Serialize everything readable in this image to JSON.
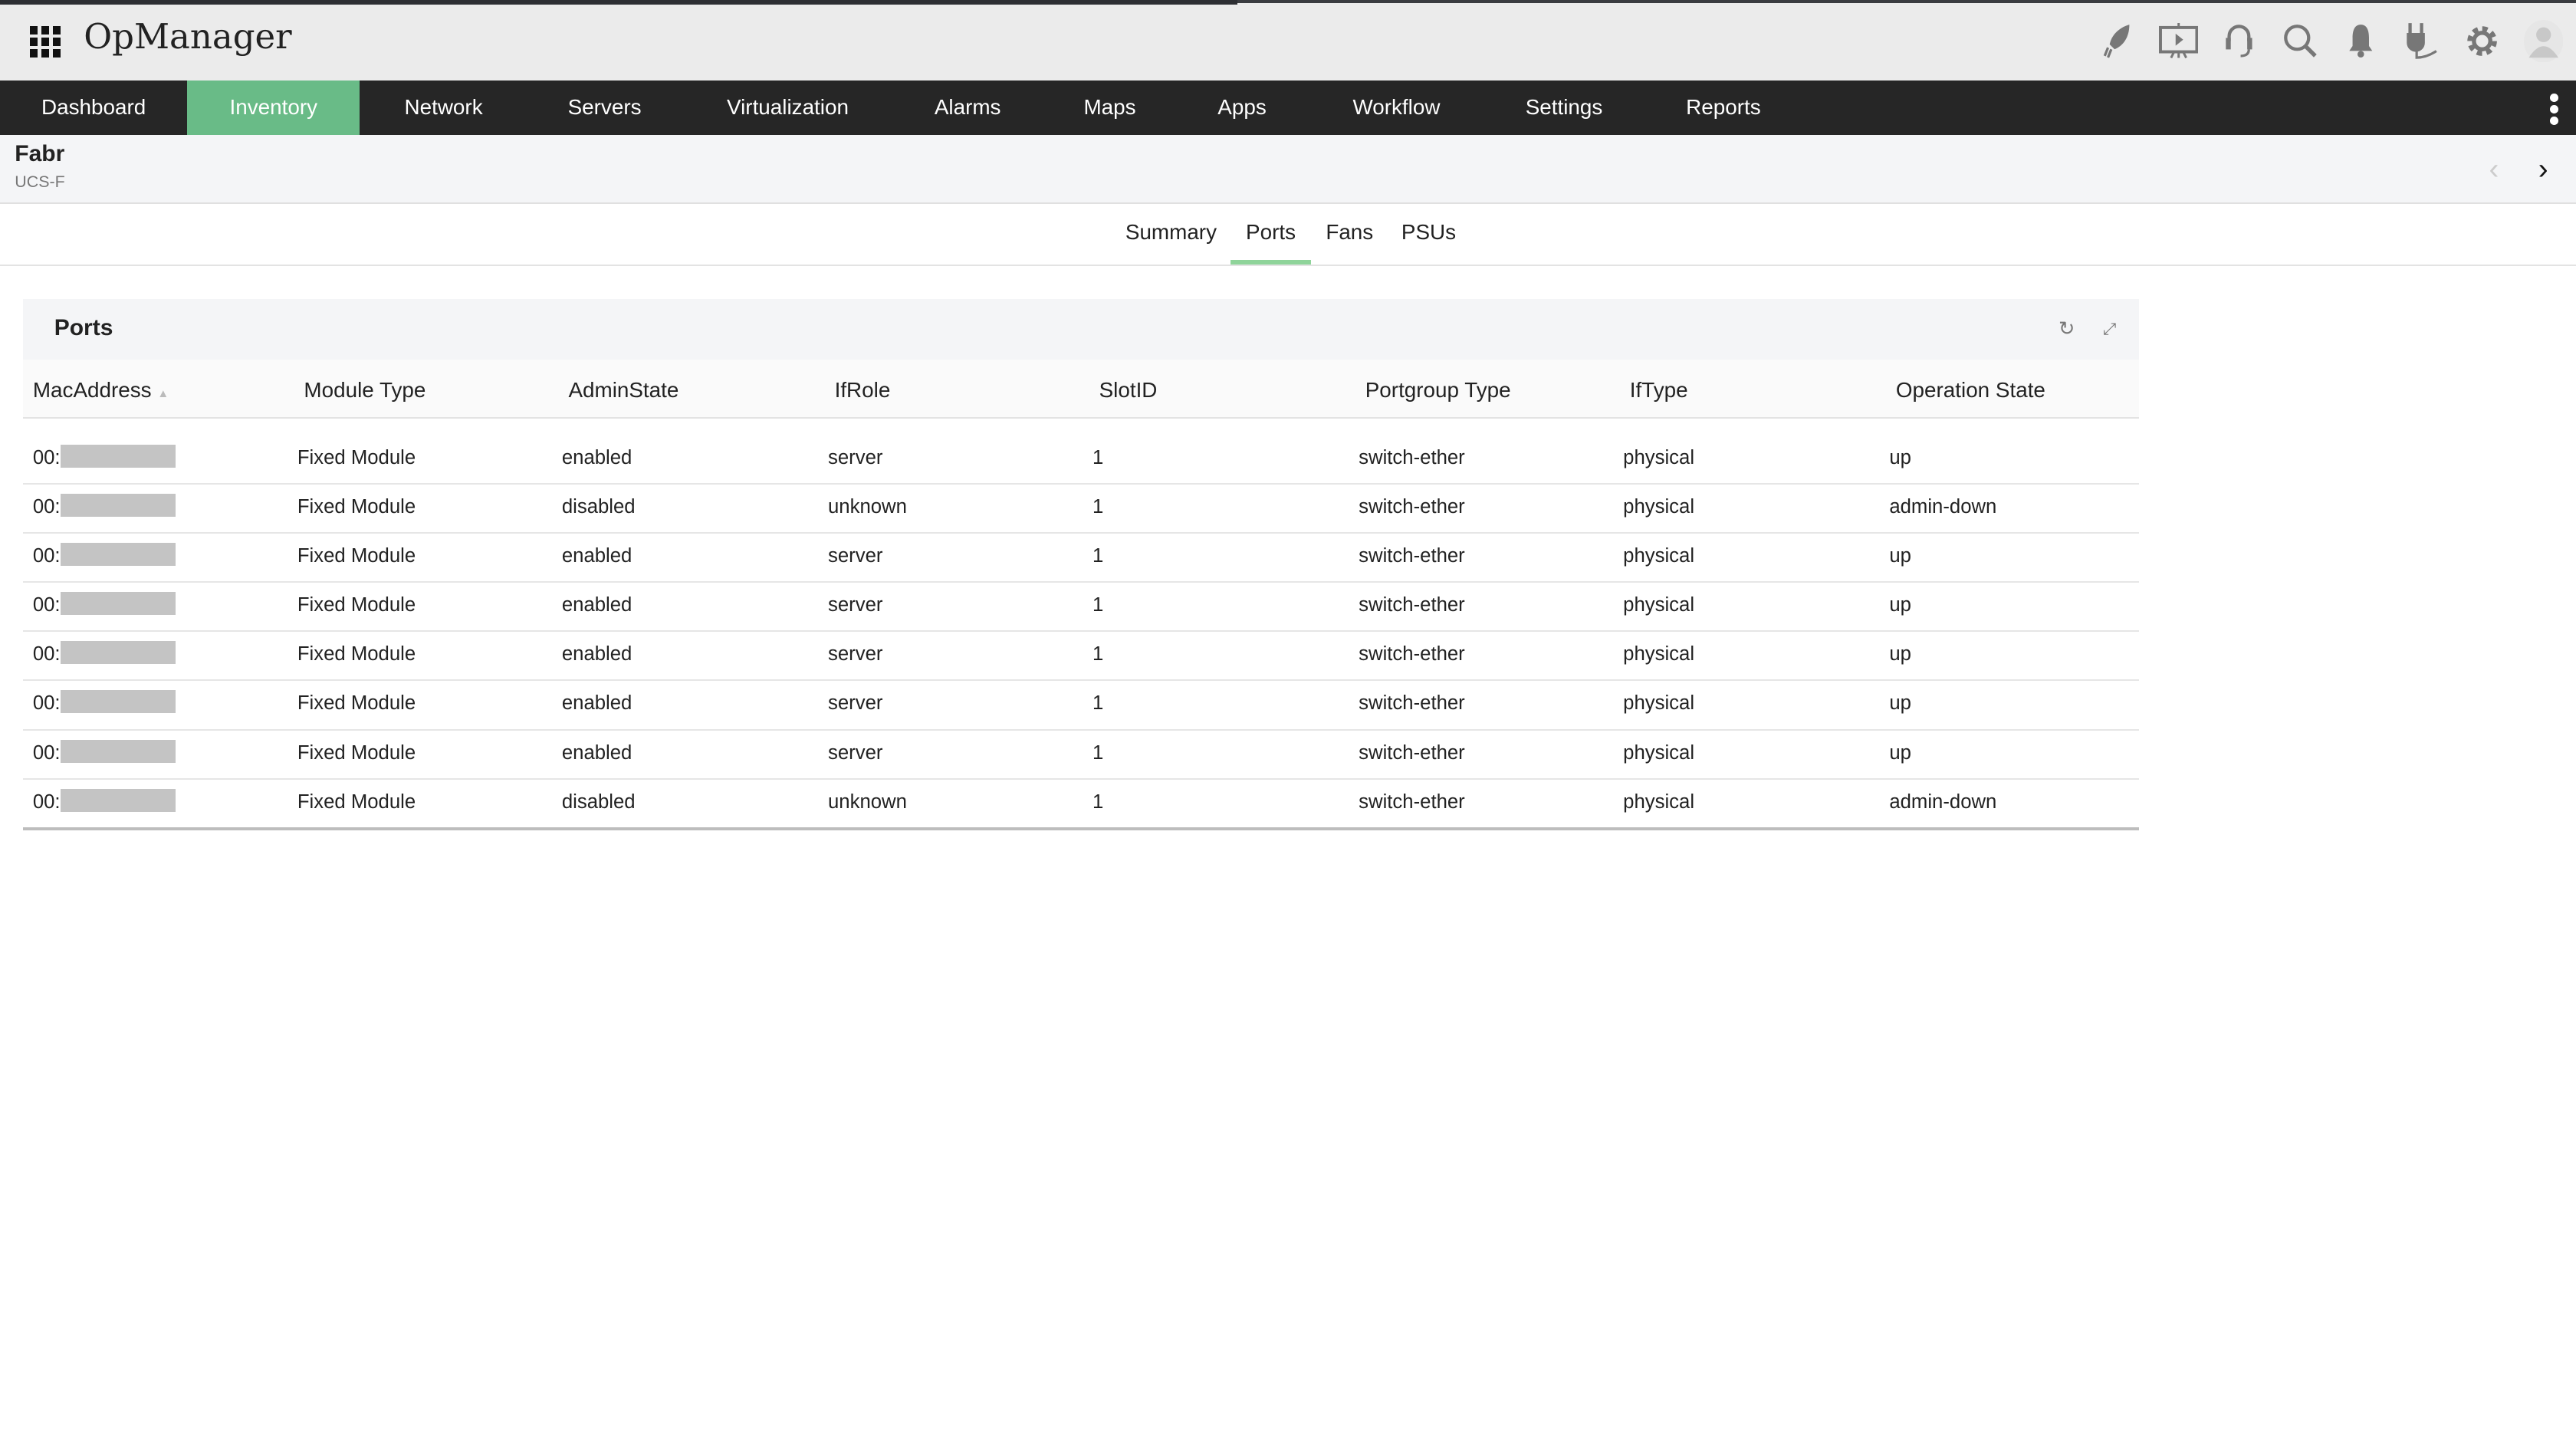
{
  "app": {
    "title": "OpManager"
  },
  "toolbar_icons": [
    "rocket-icon",
    "presentation-icon",
    "headset-icon",
    "search-icon",
    "bell-icon",
    "plug-icon",
    "gear-icon",
    "user-avatar-icon"
  ],
  "nav": {
    "items": [
      "Dashboard",
      "Inventory",
      "Network",
      "Servers",
      "Virtualization",
      "Alarms",
      "Maps",
      "Apps",
      "Workflow",
      "Settings",
      "Reports"
    ],
    "active": "Inventory"
  },
  "device": {
    "name": "Fabr",
    "type": "UCS-F"
  },
  "tabs": {
    "items": [
      "Summary",
      "Ports",
      "Fans",
      "PSUs"
    ],
    "active": "Ports"
  },
  "colors": {
    "accent": "#69bb87",
    "nav_bg": "#262626"
  },
  "ports": {
    "title": "Ports",
    "columns": [
      "MacAddress",
      "Module Type",
      "AdminState",
      "IfRole",
      "SlotID",
      "Portgroup Type",
      "IfType",
      "Operation State"
    ],
    "rows": [
      [
        "00:",
        "Fixed Module",
        "enabled",
        "server",
        "1",
        "switch-ether",
        "physical",
        "up"
      ],
      [
        "00:",
        "Fixed Module",
        "disabled",
        "unknown",
        "1",
        "switch-ether",
        "physical",
        "admin-down"
      ],
      [
        "00:",
        "Fixed Module",
        "enabled",
        "server",
        "1",
        "switch-ether",
        "physical",
        "up"
      ],
      [
        "00:",
        "Fixed Module",
        "enabled",
        "server",
        "1",
        "switch-ether",
        "physical",
        "up"
      ],
      [
        "00:",
        "Fixed Module",
        "enabled",
        "server",
        "1",
        "switch-ether",
        "physical",
        "up"
      ],
      [
        "00:",
        "Fixed Module",
        "enabled",
        "server",
        "1",
        "switch-ether",
        "physical",
        "up"
      ],
      [
        "00:",
        "Fixed Module",
        "enabled",
        "server",
        "1",
        "switch-ether",
        "physical",
        "up"
      ],
      [
        "00:",
        "Fixed Module",
        "disabled",
        "unknown",
        "1",
        "switch-ether",
        "physical",
        "admin-down"
      ]
    ]
  }
}
